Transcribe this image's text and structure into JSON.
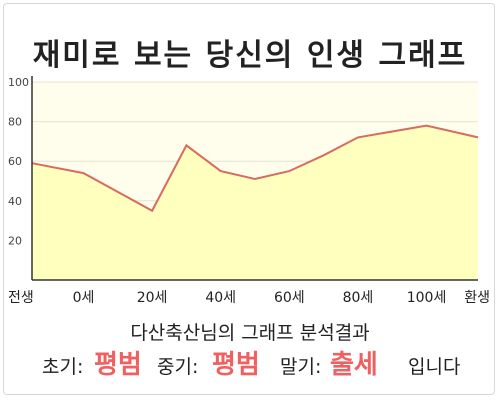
{
  "title": "재미로 보는 당신의 인생 그래프",
  "result": {
    "subject": "다산축산님의 그래프 분석결과",
    "early_label": "초기:",
    "early_value": "평범",
    "middle_label": "중기:",
    "middle_value": "평범",
    "late_label": "말기:",
    "late_value": "출세",
    "suffix": "입니다"
  },
  "colors": {
    "line": "#d96a5f",
    "fill": "#ffffbe",
    "plot_bg": "#fffdeb",
    "highlight": "#f06060"
  },
  "chart_data": {
    "type": "area",
    "x": [
      -15,
      0,
      20,
      30,
      40,
      50,
      60,
      70,
      80,
      100,
      115
    ],
    "values": [
      59,
      54,
      35,
      68,
      55,
      51,
      55,
      63,
      72,
      78,
      72
    ],
    "ylim": [
      0,
      100
    ],
    "xlim": [
      -15,
      115
    ],
    "yticks": [
      20,
      40,
      60,
      80,
      100
    ],
    "xticks": [
      {
        "x": -15,
        "label": "전생"
      },
      {
        "x": 0,
        "label": "0세"
      },
      {
        "x": 20,
        "label": "20세"
      },
      {
        "x": 40,
        "label": "40세"
      },
      {
        "x": 60,
        "label": "60세"
      },
      {
        "x": 80,
        "label": "80세"
      },
      {
        "x": 100,
        "label": "100세"
      },
      {
        "x": 115,
        "label": "환생"
      }
    ],
    "grid": true
  }
}
